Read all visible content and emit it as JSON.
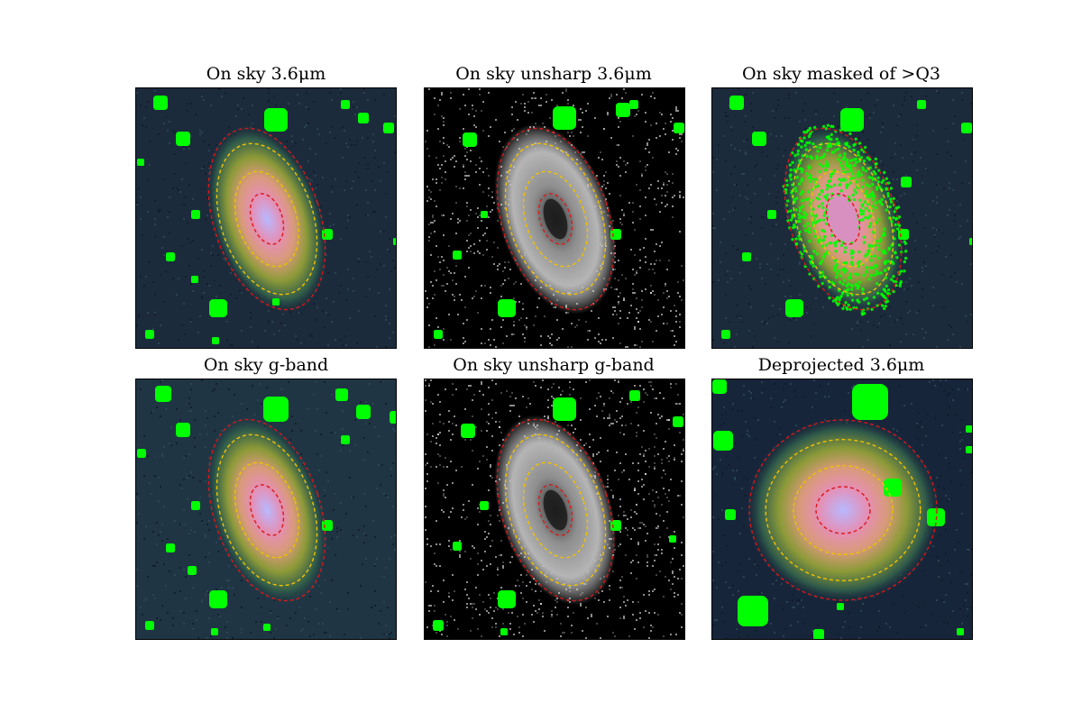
{
  "figure": {
    "panels": [
      {
        "id": "p1",
        "title": "On sky 3.6μm",
        "style": "color",
        "bg": "#1c2b3c",
        "orient": -18,
        "inner_rx": 17,
        "inner_ry": 29,
        "mid_rx": 40,
        "mid_ry": 64,
        "outer_rx": 59,
        "outer_ry": 104
      },
      {
        "id": "p2",
        "title": "On sky unsharp 3.6μm",
        "style": "unsharp",
        "bg": "#000000",
        "orient": -18,
        "inner_rx": 17,
        "inner_ry": 29,
        "mid_rx": 40,
        "mid_ry": 64,
        "outer_rx": 59,
        "outer_ry": 104
      },
      {
        "id": "p3",
        "title": "On sky masked of >Q3",
        "style": "masked",
        "bg": "#1c2b3c",
        "orient": -18,
        "inner_rx": 17,
        "inner_ry": 29,
        "mid_rx": 40,
        "mid_ry": 64,
        "outer_rx": 59,
        "outer_ry": 104
      },
      {
        "id": "p4",
        "title": "On sky g-band",
        "style": "color",
        "bg": "#1f3544",
        "orient": -18,
        "inner_rx": 17,
        "inner_ry": 29,
        "mid_rx": 40,
        "mid_ry": 64,
        "outer_rx": 59,
        "outer_ry": 104
      },
      {
        "id": "p5",
        "title": "On sky unsharp g-band",
        "style": "unsharp",
        "bg": "#000000",
        "orient": -18,
        "inner_rx": 17,
        "inner_ry": 29,
        "mid_rx": 40,
        "mid_ry": 64,
        "outer_rx": 59,
        "outer_ry": 104
      },
      {
        "id": "p6",
        "title": "Deprojected 3.6μm",
        "style": "deproj",
        "bg": "#17253a",
        "orient": 0,
        "inner_rx": 30,
        "inner_ry": 26,
        "mid_rx": 67,
        "mid_ry": 58,
        "outer_rx": 104,
        "outer_ry": 100
      }
    ],
    "colors": {
      "mask_green": "#00ff00",
      "contour_red": "#d7191c",
      "contour_yellow": "#f2c200"
    }
  }
}
